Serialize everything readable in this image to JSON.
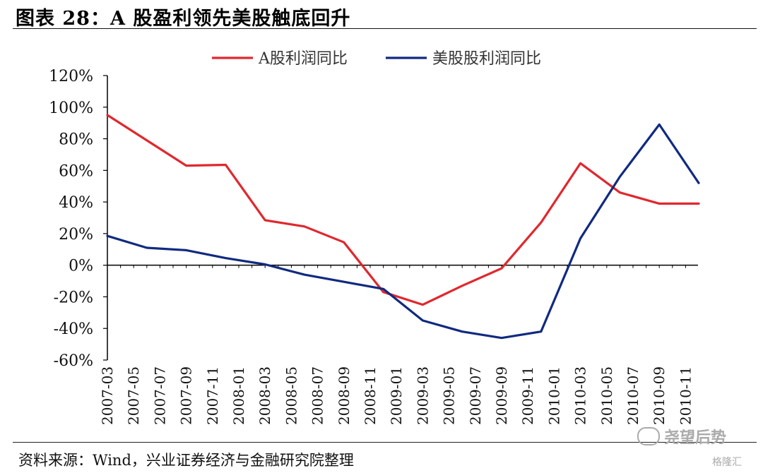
{
  "header": {
    "title": "图表 28：A 股盈利领先美股触底回升"
  },
  "footer": {
    "source": "资料来源：Wind，兴业证券经济与金融研究院整理"
  },
  "watermark": {
    "logo_text": "尧望后势",
    "brand": "格隆汇"
  },
  "chart_data": {
    "type": "line",
    "title": "",
    "xlabel": "",
    "ylabel": "",
    "ylim": [
      -60,
      120
    ],
    "yticks": [
      -60,
      -40,
      -20,
      0,
      20,
      40,
      60,
      80,
      100,
      120
    ],
    "ytick_labels": [
      "-60%",
      "-40%",
      "-20%",
      "0%",
      "20%",
      "40%",
      "60%",
      "80%",
      "100%",
      "120%"
    ],
    "categories": [
      "2007-03",
      "2007-05",
      "2007-07",
      "2007-09",
      "2007-11",
      "2008-01",
      "2008-03",
      "2008-05",
      "2008-07",
      "2008-09",
      "2008-11",
      "2009-01",
      "2009-03",
      "2009-05",
      "2009-07",
      "2009-09",
      "2009-11",
      "2010-01",
      "2010-03",
      "2010-05",
      "2010-07",
      "2010-09",
      "2010-11"
    ],
    "grid": false,
    "legend_position": "top-center",
    "series": [
      {
        "name": "A股利润同比",
        "color": "#e0282e",
        "x": [
          "2007-03",
          "2007-09",
          "2007-12",
          "2008-03",
          "2008-06",
          "2008-09",
          "2008-12",
          "2009-03",
          "2009-06",
          "2009-09",
          "2009-12",
          "2010-03",
          "2010-06",
          "2010-09",
          "2010-12"
        ],
        "values": [
          95,
          63,
          63.5,
          28.5,
          24.5,
          14.5,
          -17,
          -25,
          -13,
          -2,
          27,
          64.5,
          46,
          39,
          39
        ]
      },
      {
        "name": "美股股利润同比",
        "color": "#102a80",
        "x": [
          "2007-03",
          "2007-06",
          "2007-09",
          "2007-12",
          "2008-03",
          "2008-06",
          "2008-09",
          "2008-12",
          "2009-03",
          "2009-06",
          "2009-09",
          "2009-12",
          "2010-03",
          "2010-06",
          "2010-09",
          "2010-12"
        ],
        "values": [
          18.5,
          11,
          9.5,
          4.5,
          0.5,
          -6,
          -10.5,
          -15,
          -35,
          -42,
          -46,
          -42,
          17,
          56,
          89,
          52
        ]
      }
    ]
  }
}
